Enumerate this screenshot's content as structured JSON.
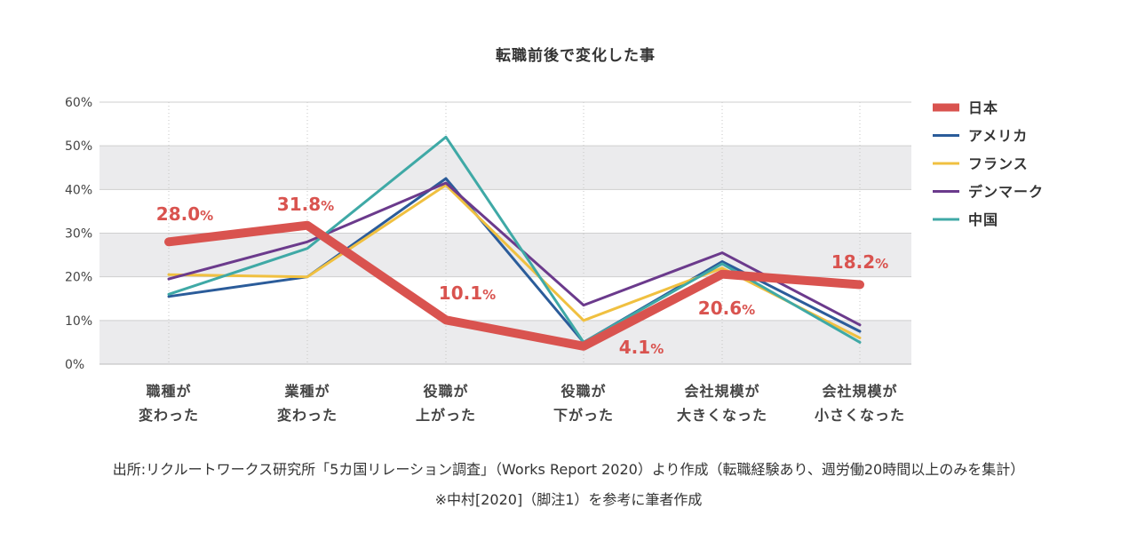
{
  "chart_data": {
    "type": "line",
    "title": "転職前後で変化した事",
    "categories": [
      [
        "職種が",
        "変わった"
      ],
      [
        "業種が",
        "変わった"
      ],
      [
        "役職が",
        "上がった"
      ],
      [
        "役職が",
        "下がった"
      ],
      [
        "会社規模が",
        "大きくなった"
      ],
      [
        "会社規模が",
        "小さくなった"
      ]
    ],
    "ylim": [
      0,
      60
    ],
    "yticks": [
      0,
      10,
      20,
      30,
      40,
      50,
      60
    ],
    "ytick_suffix": "%",
    "grid": "alternating horizontal bands",
    "legend_position": "right",
    "series": [
      {
        "name": "アメリカ",
        "color": "#2b5c9a",
        "values": [
          15.5,
          20.0,
          42.5,
          5.0,
          23.5,
          7.5
        ]
      },
      {
        "name": "フランス",
        "color": "#f0c040",
        "values": [
          20.5,
          20.0,
          41.0,
          10.0,
          22.0,
          6.0
        ]
      },
      {
        "name": "デンマーク",
        "color": "#6b3a8c",
        "values": [
          19.5,
          28.0,
          41.5,
          13.5,
          25.5,
          9.0
        ]
      },
      {
        "name": "中国",
        "color": "#3fa9a6",
        "values": [
          16.0,
          26.5,
          52.0,
          5.0,
          23.0,
          5.0
        ]
      },
      {
        "name": "日本",
        "color": "#d9534f",
        "values": [
          28.0,
          31.8,
          10.1,
          4.1,
          20.6,
          18.2
        ],
        "labels": [
          "28.0",
          "31.8",
          "10.1",
          "4.1",
          "20.6",
          "18.2"
        ]
      }
    ],
    "legend_order": [
      "日本",
      "アメリカ",
      "フランス",
      "デンマーク",
      "中国"
    ]
  },
  "notes": {
    "source": "出所:リクルートワークス研究所「5カ国リレーション調査」（Works Report 2020）より作成（転職経験あり、週労働20時間以上のみを集計）",
    "reference": "※中村[2020]（脚注1）を参考に筆者作成"
  }
}
